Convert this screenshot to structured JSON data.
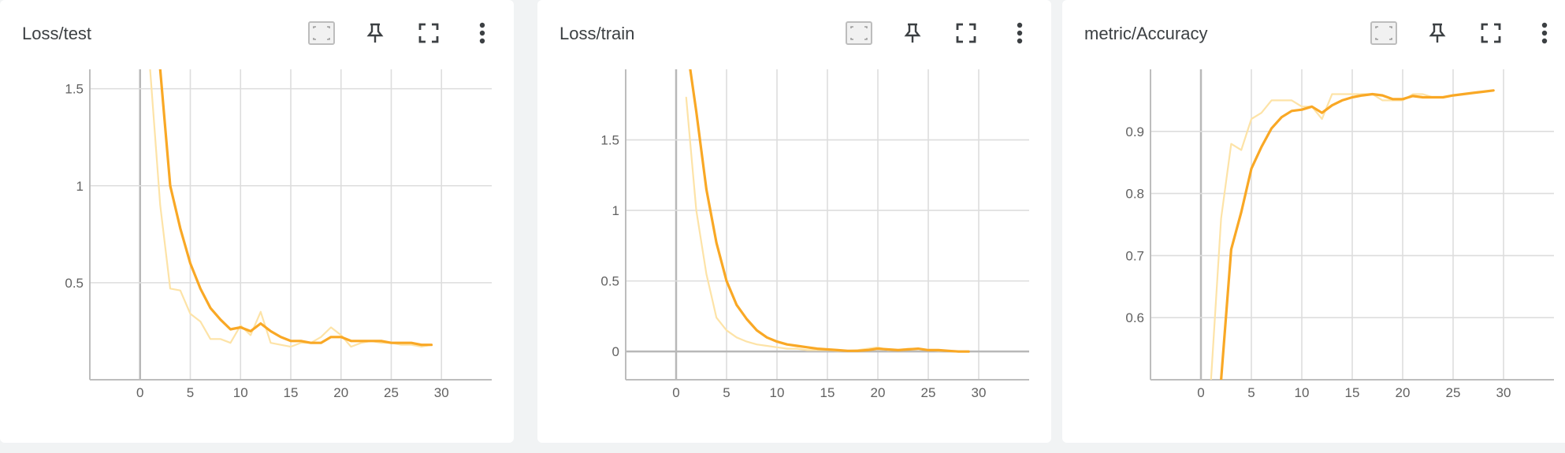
{
  "colors": {
    "line": "#f9a825",
    "raw_line": "#fde3a7",
    "grid": "#dddddd",
    "axis": "#bdbdbd",
    "zero_line": "#b8b8b8",
    "text": "#3c4043"
  },
  "toolbar_icons": [
    "fit-domain-icon",
    "pin-icon",
    "fullscreen-icon",
    "more-vert-icon"
  ],
  "charts": [
    {
      "title": "Loss/test",
      "x_ticks": [
        "0",
        "5",
        "10",
        "15",
        "20",
        "25",
        "30"
      ],
      "y_ticks": [
        "0.5",
        "1",
        "1.5"
      ]
    },
    {
      "title": "Loss/train",
      "x_ticks": [
        "0",
        "5",
        "10",
        "15",
        "20",
        "25",
        "30"
      ],
      "y_ticks": [
        "0",
        "0.5",
        "1",
        "1.5"
      ]
    },
    {
      "title": "metric/Accuracy",
      "x_ticks": [
        "0",
        "5",
        "10",
        "15",
        "20",
        "25",
        "30"
      ],
      "y_ticks": [
        "0.6",
        "0.7",
        "0.8",
        "0.9"
      ]
    }
  ],
  "chart_data": [
    {
      "type": "line",
      "title": "Loss/test",
      "xlim": [
        -5,
        35
      ],
      "ylim": [
        0,
        1.6
      ],
      "x": [
        1,
        2,
        3,
        4,
        5,
        6,
        7,
        8,
        9,
        10,
        11,
        12,
        13,
        14,
        15,
        16,
        17,
        18,
        19,
        20,
        21,
        22,
        23,
        24,
        25,
        26,
        27,
        28,
        29
      ],
      "series": [
        {
          "role": "smoothed",
          "values": [
            2.1,
            1.6,
            1.0,
            0.78,
            0.6,
            0.47,
            0.37,
            0.31,
            0.26,
            0.27,
            0.25,
            0.29,
            0.25,
            0.22,
            0.2,
            0.2,
            0.19,
            0.19,
            0.22,
            0.22,
            0.2,
            0.2,
            0.2,
            0.2,
            0.19,
            0.19,
            0.19,
            0.18,
            0.18
          ]
        },
        {
          "role": "raw",
          "values": [
            1.6,
            0.9,
            0.47,
            0.46,
            0.34,
            0.3,
            0.21,
            0.21,
            0.19,
            0.28,
            0.23,
            0.35,
            0.19,
            0.18,
            0.17,
            0.19,
            0.19,
            0.22,
            0.27,
            0.23,
            0.17,
            0.19,
            0.2,
            0.19,
            0.19,
            0.18,
            0.18,
            0.17,
            0.18
          ]
        }
      ]
    },
    {
      "type": "line",
      "title": "Loss/train",
      "xlim": [
        -5,
        35
      ],
      "ylim": [
        -0.2,
        2.0
      ],
      "x": [
        1,
        2,
        3,
        4,
        5,
        6,
        7,
        8,
        9,
        10,
        11,
        12,
        13,
        14,
        15,
        16,
        17,
        18,
        19,
        20,
        21,
        22,
        23,
        24,
        25,
        26,
        27,
        28,
        29
      ],
      "series": [
        {
          "role": "smoothed",
          "values": [
            2.2,
            1.7,
            1.15,
            0.77,
            0.5,
            0.33,
            0.23,
            0.15,
            0.1,
            0.07,
            0.05,
            0.04,
            0.03,
            0.02,
            0.015,
            0.01,
            0.005,
            0.005,
            0.01,
            0.02,
            0.015,
            0.01,
            0.015,
            0.02,
            0.01,
            0.01,
            0.005,
            0.0,
            0.0
          ]
        },
        {
          "role": "raw",
          "values": [
            1.8,
            1.0,
            0.55,
            0.24,
            0.15,
            0.1,
            0.07,
            0.05,
            0.04,
            0.03,
            0.02,
            0.02,
            0.01,
            0.01,
            0.01,
            0.005,
            0.005,
            0.01,
            0.02,
            0.03,
            0.01,
            0.01,
            0.02,
            0.02,
            0.01,
            0.005,
            0.005,
            0.0,
            0.0
          ]
        }
      ]
    },
    {
      "type": "line",
      "title": "metric/Accuracy",
      "xlim": [
        -5,
        35
      ],
      "ylim": [
        0.5,
        1.0
      ],
      "x": [
        1,
        2,
        3,
        4,
        5,
        6,
        7,
        8,
        9,
        10,
        11,
        12,
        13,
        14,
        15,
        16,
        17,
        18,
        19,
        20,
        21,
        22,
        23,
        24,
        25,
        26,
        27,
        28,
        29
      ],
      "series": [
        {
          "role": "smoothed",
          "values": [
            0.4,
            0.5,
            0.71,
            0.77,
            0.84,
            0.875,
            0.905,
            0.923,
            0.933,
            0.935,
            0.94,
            0.93,
            0.942,
            0.95,
            0.955,
            0.958,
            0.96,
            0.958,
            0.952,
            0.952,
            0.957,
            0.955,
            0.955,
            0.955,
            0.958,
            0.96,
            0.962,
            0.964,
            0.966
          ]
        },
        {
          "role": "raw",
          "values": [
            0.5,
            0.76,
            0.88,
            0.87,
            0.92,
            0.93,
            0.95,
            0.95,
            0.95,
            0.94,
            0.94,
            0.92,
            0.96,
            0.96,
            0.96,
            0.96,
            0.96,
            0.95,
            0.95,
            0.95,
            0.96,
            0.96,
            0.955,
            0.955,
            0.958,
            0.96,
            0.962,
            0.964,
            0.966
          ]
        }
      ]
    }
  ]
}
